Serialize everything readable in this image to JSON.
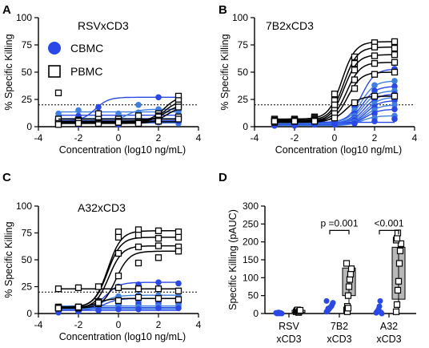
{
  "chart_data": [
    {
      "panel": "A",
      "type": "line",
      "title": "RSVxCD3",
      "xlabel": "Concentration (log10 ng/mL)",
      "ylabel": "% Specific Killing",
      "xlim": [
        -4,
        4
      ],
      "ylim": [
        0,
        100
      ],
      "xticks": [
        -4,
        -2,
        0,
        2,
        4
      ],
      "yticks": [
        0,
        25,
        50,
        75,
        100
      ],
      "threshold": 20,
      "x": [
        -3,
        -2,
        -1,
        0,
        1,
        2,
        3
      ],
      "legend": [
        {
          "label": "CBMC",
          "marker": "circle",
          "color": "#2a48e6"
        },
        {
          "label": "PBMC",
          "marker": "square",
          "color": "#000000"
        }
      ],
      "series": [
        {
          "group": "CBMC",
          "values": [
            2,
            2,
            3,
            2,
            3,
            4,
            5
          ]
        },
        {
          "group": "CBMC",
          "values": [
            4,
            3,
            4,
            4,
            3,
            4,
            3
          ]
        },
        {
          "group": "CBMC",
          "values": [
            6,
            5,
            5,
            6,
            5,
            6,
            5
          ]
        },
        {
          "group": "CBMC",
          "values": [
            8,
            7,
            7,
            6,
            7,
            7,
            8
          ]
        },
        {
          "group": "CBMC",
          "values": [
            9,
            10,
            11,
            10,
            10,
            12,
            11
          ]
        },
        {
          "group": "CBMC",
          "values": [
            12,
            15,
            13,
            12,
            13,
            15,
            14
          ]
        },
        {
          "group": "CBMC",
          "values": [
            5,
            6,
            18,
            7,
            6,
            27,
            21
          ]
        },
        {
          "group": "CBMC",
          "values": [
            3,
            4,
            4,
            5,
            20,
            16,
            8
          ]
        },
        {
          "group": "PBMC",
          "values": [
            5,
            6,
            5,
            5,
            5,
            12,
            28
          ]
        },
        {
          "group": "PBMC",
          "values": [
            4,
            6,
            5,
            6,
            5,
            10,
            24
          ]
        },
        {
          "group": "PBMC",
          "values": [
            7,
            5,
            8,
            7,
            6,
            9,
            20
          ]
        },
        {
          "group": "PBMC",
          "values": [
            3,
            4,
            3,
            4,
            4,
            6,
            18
          ]
        },
        {
          "group": "PBMC",
          "values": [
            31,
            5,
            9,
            5,
            10,
            6,
            9
          ]
        },
        {
          "group": "PBMC",
          "values": [
            2,
            3,
            12,
            4,
            3,
            5,
            7
          ]
        }
      ]
    },
    {
      "panel": "B",
      "type": "line",
      "title": "7B2xCD3",
      "xlabel": "Concentration (log10 ng/mL)",
      "ylabel": "% Specific Killing",
      "xlim": [
        -4,
        4
      ],
      "ylim": [
        0,
        100
      ],
      "xticks": [
        -4,
        -2,
        0,
        2,
        4
      ],
      "yticks": [
        0,
        25,
        50,
        75,
        100
      ],
      "threshold": 20,
      "x": [
        -3,
        -2,
        -1,
        0,
        1,
        2,
        3
      ],
      "series": [
        {
          "group": "PBMC",
          "values": [
            7,
            7,
            9,
            30,
            64,
            77,
            78
          ]
        },
        {
          "group": "PBMC",
          "values": [
            6,
            6,
            8,
            24,
            58,
            73,
            72
          ]
        },
        {
          "group": "PBMC",
          "values": [
            5,
            6,
            7,
            20,
            52,
            65,
            66
          ]
        },
        {
          "group": "PBMC",
          "values": [
            5,
            5,
            6,
            15,
            43,
            58,
            59
          ]
        },
        {
          "group": "PBMC",
          "values": [
            4,
            5,
            6,
            12,
            35,
            48,
            50
          ]
        },
        {
          "group": "PBMC",
          "values": [
            5,
            5,
            5,
            8,
            22,
            28,
            28
          ]
        },
        {
          "group": "CBMC",
          "values": [
            4,
            4,
            5,
            5,
            18,
            48,
            53
          ]
        },
        {
          "group": "CBMC",
          "values": [
            4,
            4,
            4,
            5,
            15,
            38,
            42
          ]
        },
        {
          "group": "CBMC",
          "values": [
            3,
            4,
            4,
            5,
            12,
            33,
            37
          ]
        },
        {
          "group": "CBMC",
          "values": [
            3,
            3,
            4,
            4,
            10,
            29,
            33
          ]
        },
        {
          "group": "CBMC",
          "values": [
            3,
            3,
            3,
            4,
            8,
            25,
            30
          ]
        },
        {
          "group": "CBMC",
          "values": [
            3,
            3,
            3,
            4,
            7,
            21,
            27
          ]
        },
        {
          "group": "CBMC",
          "values": [
            2,
            3,
            3,
            4,
            6,
            18,
            24
          ]
        },
        {
          "group": "CBMC",
          "values": [
            2,
            2,
            3,
            3,
            5,
            15,
            20
          ]
        },
        {
          "group": "CBMC",
          "values": [
            2,
            2,
            2,
            3,
            5,
            12,
            16
          ]
        },
        {
          "group": "CBMC",
          "values": [
            1,
            2,
            2,
            3,
            4,
            8,
            10
          ]
        },
        {
          "group": "CBMC",
          "values": [
            1,
            1,
            2,
            2,
            3,
            5,
            7
          ]
        }
      ]
    },
    {
      "panel": "C",
      "type": "line",
      "title": "A32xCD3",
      "xlabel": "Concentration (log10 ng/mL)",
      "ylabel": "% Specific Killing",
      "xlim": [
        -4,
        4
      ],
      "ylim": [
        0,
        100
      ],
      "xticks": [
        -4,
        -2,
        0,
        2,
        4
      ],
      "yticks": [
        0,
        25,
        50,
        75,
        100
      ],
      "threshold": 20,
      "x": [
        -3,
        -2,
        -1,
        0,
        1,
        2,
        3
      ],
      "series": [
        {
          "group": "PBMC",
          "values": [
            6,
            6,
            11,
            76,
            78,
            77,
            76
          ]
        },
        {
          "group": "PBMC",
          "values": [
            6,
            6,
            11,
            71,
            73,
            70,
            71
          ]
        },
        {
          "group": "PBMC",
          "values": [
            5,
            5,
            10,
            56,
            62,
            63,
            62
          ]
        },
        {
          "group": "PBMC",
          "values": [
            5,
            6,
            9,
            35,
            47,
            52,
            58
          ]
        },
        {
          "group": "PBMC",
          "values": [
            23,
            24,
            25,
            24,
            23,
            23,
            21
          ]
        },
        {
          "group": "PBMC",
          "values": [
            5,
            6,
            10,
            12,
            15,
            14,
            13
          ]
        },
        {
          "group": "CBMC",
          "values": [
            5,
            6,
            12,
            25,
            27,
            29,
            28
          ]
        },
        {
          "group": "CBMC",
          "values": [
            4,
            5,
            9,
            16,
            17,
            17,
            16
          ]
        },
        {
          "group": "CBMC",
          "values": [
            3,
            4,
            7,
            12,
            13,
            14,
            13
          ]
        },
        {
          "group": "CBMC",
          "values": [
            3,
            4,
            6,
            10,
            11,
            11,
            11
          ]
        },
        {
          "group": "CBMC",
          "values": [
            2,
            3,
            5,
            8,
            9,
            9,
            9
          ]
        },
        {
          "group": "CBMC",
          "values": [
            2,
            3,
            4,
            6,
            6,
            7,
            7
          ]
        },
        {
          "group": "CBMC",
          "values": [
            1,
            2,
            3,
            4,
            4,
            5,
            5
          ]
        }
      ]
    },
    {
      "panel": "D",
      "type": "bar",
      "ylabel": "Specific Killing (pAUC)",
      "ylim": [
        0,
        300
      ],
      "yticks": [
        0,
        50,
        100,
        150,
        200,
        250,
        300
      ],
      "categories": [
        "RSV\nxCD3",
        "7B2\nxCD3",
        "A32\nxCD3"
      ],
      "category_lines": [
        [
          "RSV",
          "xCD3"
        ],
        [
          "7B2",
          "xCD3"
        ],
        [
          "A32",
          "xCD3"
        ]
      ],
      "series": [
        {
          "group": "CBMC",
          "points": [
            [
              2,
              0,
              1,
              3,
              0,
              2,
              1,
              0
            ],
            [
              5,
              8,
              10,
              12,
              15,
              18,
              20,
              25,
              30,
              35,
              6,
              14
            ],
            [
              2,
              5,
              8,
              12,
              20,
              35,
              3,
              0
            ]
          ]
        },
        {
          "group": "PBMC",
          "points": [
            [
              5,
              8,
              10,
              3,
              6,
              9
            ],
            [
              10,
              20,
              50,
              75,
              95,
              110,
              125,
              140,
              5,
              15
            ],
            [
              5,
              25,
              65,
              90,
              140,
              175,
              195,
              205,
              210,
              225
            ]
          ],
          "bars": [
            {
              "q1": 3,
              "q3": 9
            },
            {
              "q1": 50,
              "q3": 127
            },
            {
              "q1": 40,
              "q3": 185
            }
          ]
        }
      ],
      "comparisons": [
        {
          "category": "7B2\nxCD3",
          "label": "p =0.001"
        },
        {
          "category": "A32\nxCD3",
          "label": "<0.001"
        }
      ]
    }
  ]
}
